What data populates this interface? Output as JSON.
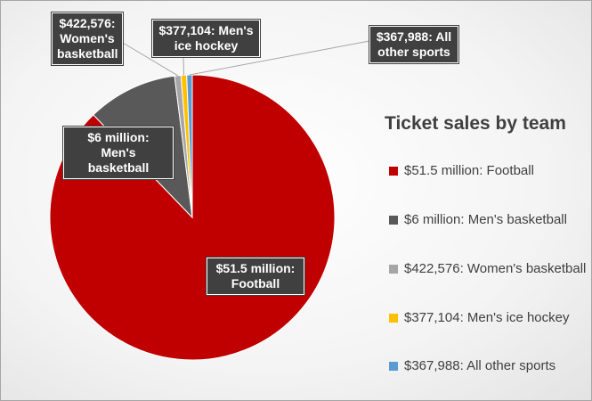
{
  "chart_data": {
    "type": "pie",
    "title": "Ticket sales by team",
    "slices": [
      {
        "label": "$51.5 million: Football",
        "value": 51500000,
        "color": "#c00000"
      },
      {
        "label": "$6 million: Men's basketball",
        "value": 6000000,
        "color": "#595959"
      },
      {
        "label": "$422,576: Women's basketball",
        "value": 422576,
        "color": "#a6a6a6"
      },
      {
        "label": "$377,104: Men's ice hockey",
        "value": 377104,
        "color": "#ffc000"
      },
      {
        "label": "$367,988: All other sports",
        "value": 367988,
        "color": "#5b9bd5"
      }
    ],
    "data_labels": [
      {
        "line1": "$51.5 million:",
        "line2": "Football"
      },
      {
        "line1": "$6 million: Men's",
        "line2": "basketball"
      },
      {
        "line1": "$422,576:",
        "line2": "Women's",
        "line3": "basketball"
      },
      {
        "line1": "$377,104: Men's",
        "line2": "ice hockey"
      },
      {
        "line1": "$367,988: All",
        "line2": "other sports"
      }
    ],
    "legend_position": "right"
  }
}
